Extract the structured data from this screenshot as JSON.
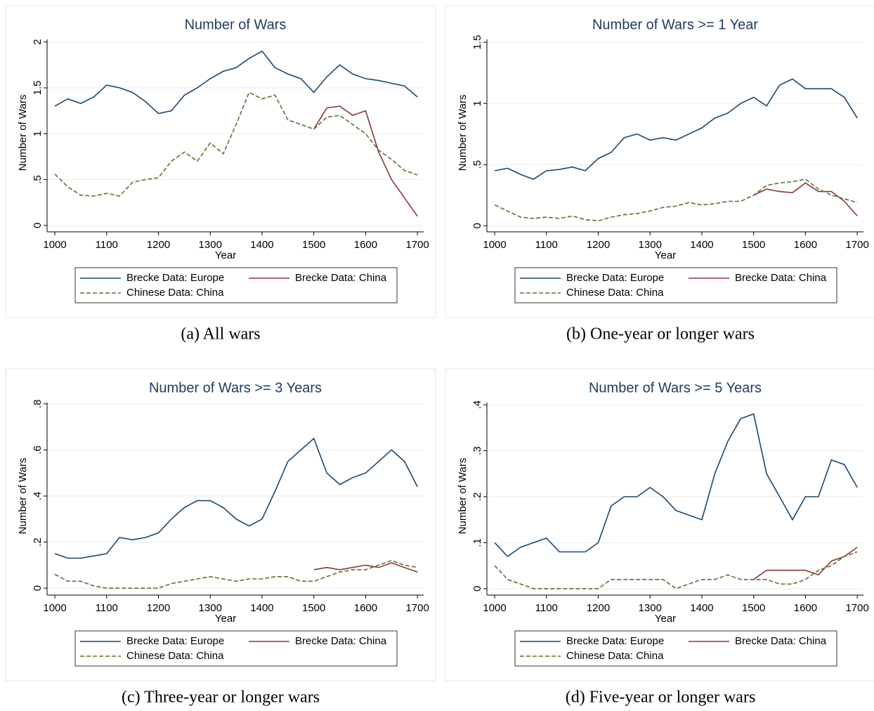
{
  "chart_data": [
    {
      "type": "line",
      "title": "Number of Wars",
      "caption": "(a) All wars",
      "x_label": "Year",
      "y_label": "Number of Wars",
      "x": [
        1000,
        1025,
        1050,
        1075,
        1100,
        1125,
        1150,
        1175,
        1200,
        1225,
        1250,
        1275,
        1300,
        1325,
        1350,
        1375,
        1400,
        1425,
        1450,
        1475,
        1500,
        1525,
        1550,
        1575,
        1600,
        1625,
        1650,
        1675,
        1700
      ],
      "xlim": [
        985,
        1712
      ],
      "xticks": [
        1000,
        1100,
        1200,
        1300,
        1400,
        1500,
        1600,
        1700
      ],
      "ylim": [
        -0.07,
        2.09
      ],
      "yticks": [
        0,
        {
          "value": 0.5,
          "label": ".5"
        },
        1,
        1.5,
        2
      ],
      "grid": true,
      "series": [
        {
          "name": "Brecke Data: Europe",
          "color": "#1a476f",
          "dash": false,
          "values": [
            1.3,
            1.38,
            1.33,
            1.4,
            1.53,
            1.5,
            1.45,
            1.35,
            1.22,
            1.25,
            1.42,
            1.5,
            1.6,
            1.68,
            1.72,
            1.82,
            1.9,
            1.72,
            1.65,
            1.6,
            1.45,
            1.62,
            1.75,
            1.65,
            1.6,
            1.58,
            1.55,
            1.52,
            1.4
          ]
        },
        {
          "name": "Brecke Data: China",
          "color": "#90353b",
          "dash": false,
          "values": [
            null,
            null,
            null,
            null,
            null,
            null,
            null,
            null,
            null,
            null,
            null,
            null,
            null,
            null,
            null,
            null,
            null,
            null,
            null,
            null,
            1.05,
            1.28,
            1.3,
            1.2,
            1.25,
            0.8,
            0.5,
            0.3,
            0.1
          ]
        },
        {
          "name": "Chinese Data: China",
          "color": "#55752f",
          "dash": true,
          "values": [
            0.56,
            0.42,
            0.33,
            0.32,
            0.35,
            0.32,
            0.47,
            0.5,
            0.52,
            0.7,
            0.8,
            0.7,
            0.9,
            0.78,
            1.1,
            1.45,
            1.38,
            1.42,
            1.15,
            1.1,
            1.05,
            1.18,
            1.2,
            1.1,
            1.0,
            0.82,
            0.72,
            0.6,
            0.55
          ]
        }
      ]
    },
    {
      "type": "line",
      "title": "Number of Wars >= 1 Year",
      "caption": "(b)  One-year or longer wars",
      "x_label": "Year",
      "y_label": "Number of Wars",
      "x": [
        1000,
        1025,
        1050,
        1075,
        1100,
        1125,
        1150,
        1175,
        1200,
        1225,
        1250,
        1275,
        1300,
        1325,
        1350,
        1375,
        1400,
        1425,
        1450,
        1475,
        1500,
        1525,
        1550,
        1575,
        1600,
        1625,
        1650,
        1675,
        1700
      ],
      "xlim": [
        985,
        1712
      ],
      "xticks": [
        1000,
        1100,
        1200,
        1300,
        1400,
        1500,
        1600,
        1700
      ],
      "ylim": [
        -0.05,
        1.57
      ],
      "yticks": [
        0,
        {
          "value": 0.5,
          "label": ".5"
        },
        1,
        1.5
      ],
      "grid": true,
      "series": [
        {
          "name": "Brecke Data: Europe",
          "color": "#1a476f",
          "dash": false,
          "values": [
            0.45,
            0.47,
            0.42,
            0.38,
            0.45,
            0.46,
            0.48,
            0.45,
            0.55,
            0.6,
            0.72,
            0.75,
            0.7,
            0.72,
            0.7,
            0.75,
            0.8,
            0.88,
            0.92,
            1.0,
            1.05,
            0.98,
            1.15,
            1.2,
            1.12,
            1.12,
            1.12,
            1.05,
            0.88
          ]
        },
        {
          "name": "Brecke Data: China",
          "color": "#90353b",
          "dash": false,
          "values": [
            null,
            null,
            null,
            null,
            null,
            null,
            null,
            null,
            null,
            null,
            null,
            null,
            null,
            null,
            null,
            null,
            null,
            null,
            null,
            null,
            0.25,
            0.3,
            0.28,
            0.27,
            0.35,
            0.28,
            0.28,
            0.2,
            0.08
          ]
        },
        {
          "name": "Chinese Data: China",
          "color": "#55752f",
          "dash": true,
          "values": [
            0.17,
            0.12,
            0.07,
            0.06,
            0.07,
            0.06,
            0.08,
            0.05,
            0.04,
            0.07,
            0.09,
            0.1,
            0.12,
            0.15,
            0.16,
            0.19,
            0.17,
            0.18,
            0.2,
            0.2,
            0.25,
            0.33,
            0.35,
            0.36,
            0.38,
            0.3,
            0.25,
            0.22,
            0.19
          ]
        }
      ]
    },
    {
      "type": "line",
      "title": "Number of Wars >= 3 Years",
      "caption": "(c)  Three-year or longer wars",
      "x_label": "Year",
      "y_label": "Number of Wars",
      "x": [
        1000,
        1025,
        1050,
        1075,
        1100,
        1125,
        1150,
        1175,
        1200,
        1225,
        1250,
        1275,
        1300,
        1325,
        1350,
        1375,
        1400,
        1425,
        1450,
        1475,
        1500,
        1525,
        1550,
        1575,
        1600,
        1625,
        1650,
        1675,
        1700
      ],
      "xlim": [
        985,
        1712
      ],
      "xticks": [
        1000,
        1100,
        1200,
        1300,
        1400,
        1500,
        1600,
        1700
      ],
      "ylim": [
        -0.03,
        0.83
      ],
      "yticks": [
        0,
        {
          "value": 0.2,
          "label": ".2"
        },
        {
          "value": 0.4,
          "label": ".4"
        },
        {
          "value": 0.6,
          "label": ".6"
        },
        {
          "value": 0.8,
          "label": ".8"
        }
      ],
      "grid": true,
      "series": [
        {
          "name": "Brecke Data: Europe",
          "color": "#1a476f",
          "dash": false,
          "values": [
            0.15,
            0.13,
            0.13,
            0.14,
            0.15,
            0.22,
            0.21,
            0.22,
            0.24,
            0.3,
            0.35,
            0.38,
            0.38,
            0.35,
            0.3,
            0.27,
            0.3,
            0.42,
            0.55,
            0.6,
            0.65,
            0.5,
            0.45,
            0.48,
            0.5,
            0.55,
            0.6,
            0.55,
            0.44
          ]
        },
        {
          "name": "Brecke Data: China",
          "color": "#90353b",
          "dash": false,
          "values": [
            null,
            null,
            null,
            null,
            null,
            null,
            null,
            null,
            null,
            null,
            null,
            null,
            null,
            null,
            null,
            null,
            null,
            null,
            null,
            null,
            0.08,
            0.09,
            0.08,
            0.09,
            0.1,
            0.09,
            0.11,
            0.09,
            0.07
          ]
        },
        {
          "name": "Chinese Data: China",
          "color": "#55752f",
          "dash": true,
          "values": [
            0.06,
            0.03,
            0.03,
            0.01,
            0,
            0,
            0,
            0,
            0,
            0.02,
            0.03,
            0.04,
            0.05,
            0.04,
            0.03,
            0.04,
            0.04,
            0.05,
            0.05,
            0.03,
            0.03,
            0.05,
            0.07,
            0.08,
            0.08,
            0.1,
            0.12,
            0.1,
            0.09
          ]
        }
      ]
    },
    {
      "type": "line",
      "title": "Number of Wars >= 5 Years",
      "caption": "(d)  Five-year or longer wars",
      "x_label": "Year",
      "y_label": "Number of Wars",
      "x": [
        1000,
        1025,
        1050,
        1075,
        1100,
        1125,
        1150,
        1175,
        1200,
        1225,
        1250,
        1275,
        1300,
        1325,
        1350,
        1375,
        1400,
        1425,
        1450,
        1475,
        1500,
        1525,
        1550,
        1575,
        1600,
        1625,
        1650,
        1675,
        1700
      ],
      "xlim": [
        985,
        1712
      ],
      "xticks": [
        1000,
        1100,
        1200,
        1300,
        1400,
        1500,
        1600,
        1700
      ],
      "ylim": [
        -0.014,
        0.417
      ],
      "yticks": [
        0,
        {
          "value": 0.1,
          "label": ".1"
        },
        {
          "value": 0.2,
          "label": ".2"
        },
        {
          "value": 0.3,
          "label": ".3"
        },
        {
          "value": 0.4,
          "label": ".4"
        }
      ],
      "grid": true,
      "series": [
        {
          "name": "Brecke Data: Europe",
          "color": "#1a476f",
          "dash": false,
          "values": [
            0.1,
            0.07,
            0.09,
            0.1,
            0.11,
            0.08,
            0.08,
            0.08,
            0.1,
            0.18,
            0.2,
            0.2,
            0.22,
            0.2,
            0.17,
            0.16,
            0.15,
            0.25,
            0.32,
            0.37,
            0.38,
            0.25,
            0.2,
            0.15,
            0.2,
            0.2,
            0.28,
            0.27,
            0.22
          ]
        },
        {
          "name": "Brecke Data: China",
          "color": "#90353b",
          "dash": false,
          "values": [
            null,
            null,
            null,
            null,
            null,
            null,
            null,
            null,
            null,
            null,
            null,
            null,
            null,
            null,
            null,
            null,
            null,
            null,
            null,
            null,
            0.02,
            0.04,
            0.04,
            0.04,
            0.04,
            0.03,
            0.06,
            0.07,
            0.09
          ]
        },
        {
          "name": "Chinese Data: China",
          "color": "#55752f",
          "dash": true,
          "values": [
            0.05,
            0.02,
            0.01,
            0,
            0,
            0,
            0,
            0,
            0,
            0.02,
            0.02,
            0.02,
            0.02,
            0.02,
            0,
            0.01,
            0.02,
            0.02,
            0.03,
            0.02,
            0.02,
            0.02,
            0.01,
            0.01,
            0.02,
            0.04,
            0.05,
            0.07,
            0.08
          ]
        }
      ]
    }
  ]
}
